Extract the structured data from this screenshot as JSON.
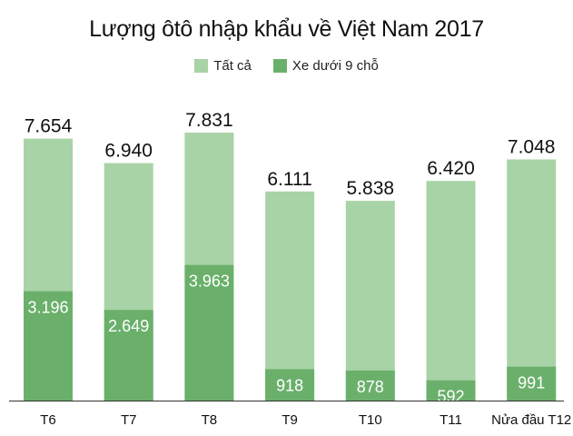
{
  "chart_data": {
    "type": "bar",
    "title": "Lượng ôtô nhập khẩu về Việt Nam 2017",
    "categories": [
      "T6",
      "T7",
      "T8",
      "T9",
      "T10",
      "T11",
      "Nửa đầu T12"
    ],
    "series": [
      {
        "name": "Tất cả",
        "values": [
          7654,
          6940,
          7831,
          6111,
          5838,
          6420,
          7048
        ],
        "labels": [
          "7.654",
          "6.940",
          "7.831",
          "6.111",
          "5.838",
          "6.420",
          "7.048"
        ],
        "color": "#a8d3a6"
      },
      {
        "name": "Xe dưới 9 chỗ",
        "values": [
          3196,
          2649,
          3963,
          918,
          878,
          592,
          991
        ],
        "labels": [
          "3.196",
          "2.649",
          "3.963",
          "918",
          "878",
          "592",
          "991"
        ],
        "color": "#6ab06b"
      }
    ],
    "ylim": [
      0,
      8000
    ],
    "legend_position": "top-center",
    "grid": false
  }
}
